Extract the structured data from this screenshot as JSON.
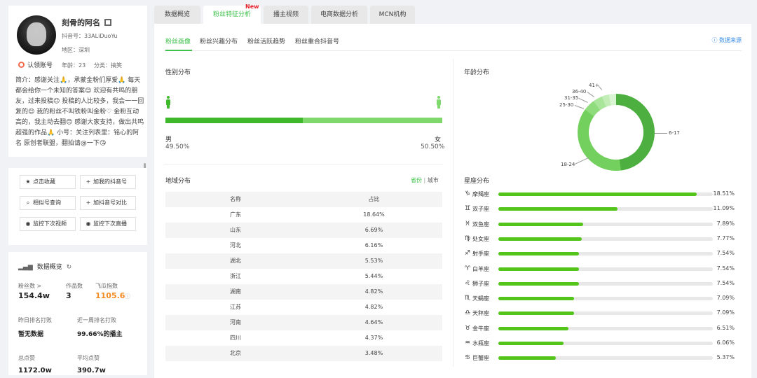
{
  "profile": {
    "name": "刻骨的阿名",
    "douyin_id": "抖音号：33ALiDuoYu",
    "region": "地区：深圳",
    "age": "年龄：23",
    "category": "分类：搞笑",
    "verify": "认领账号",
    "intro": "简介：感谢关注🙏，承蒙金粉们厚爱🙏 每天都会给你一个未知的答案😊 欢迎有共鸣的朋友，过来投稿😉 投稿的人比较多，我会一一回复的😊 我的粉丝不叫铁粉叫金粉♡ 金粉互动高的，我主动去翻😊 感谢大家支持，做出共鸣超强的作品🙏 小号：关注列表里：铭心的阿名 原创者联盟，翻拍请@一下😘"
  },
  "actions": [
    {
      "icon": "★",
      "label": "点击收藏"
    },
    {
      "icon": "+",
      "label": "加我的抖音号"
    },
    {
      "icon": "⌕",
      "label": "相似号查询"
    },
    {
      "icon": "+",
      "label": "加抖音号对比"
    },
    {
      "icon": "◉",
      "label": "监控下次视频"
    },
    {
      "icon": "◉",
      "label": "监控下次直播"
    }
  ],
  "stats": {
    "header": "数据概览",
    "fans_label": "粉丝数 >",
    "fans": "154.4w",
    "works_label": "作品数",
    "works": "3",
    "index_label": "飞瓜指数",
    "index": "1105.6",
    "rank_yesterday_label": "昨日排名打败",
    "rank_yesterday": "暂无数据",
    "rank_week_label": "近一周排名打败",
    "rank_week": "99.66%的播主",
    "likes_label": "总点赞",
    "likes": "1172.0w",
    "avg_likes_label": "平均点赞",
    "avg_likes": "390.7w"
  },
  "tabs": [
    "数据概览",
    "粉丝特征分析",
    "播主视频",
    "电商数据分析",
    "MCN机构"
  ],
  "new_badge": "New",
  "subtabs": [
    "粉丝画像",
    "粉丝兴趣分布",
    "粉丝活跃趋势",
    "粉丝重合抖音号"
  ],
  "source": "ⓘ 数据来源",
  "gender": {
    "title": "性别分布",
    "male_label": "男",
    "male_value": "49.50%",
    "male_ratio": 0.495,
    "female_label": "女",
    "female_value": "50.50%"
  },
  "age": {
    "title": "年龄分布",
    "labels": [
      "6-17",
      "18-24",
      "25-30",
      "31-35",
      "36-40",
      "41+"
    ],
    "values": [
      48,
      37,
      5,
      4,
      3,
      3
    ],
    "colors": [
      "#4caf3f",
      "#74d05e",
      "#8fdc7c",
      "#a9e59a",
      "#c2edb7",
      "#daf5d3"
    ]
  },
  "region": {
    "title": "地域分布",
    "toggle_province": "省份",
    "toggle_sep": "|",
    "toggle_city": "城市",
    "col_name": "名称",
    "col_ratio": "占比",
    "rows": [
      {
        "name": "广东",
        "ratio": "18.64%"
      },
      {
        "name": "山东",
        "ratio": "6.69%"
      },
      {
        "name": "河北",
        "ratio": "6.16%"
      },
      {
        "name": "湖北",
        "ratio": "5.53%"
      },
      {
        "name": "浙江",
        "ratio": "5.44%"
      },
      {
        "name": "湖南",
        "ratio": "4.82%"
      },
      {
        "name": "江苏",
        "ratio": "4.82%"
      },
      {
        "name": "河南",
        "ratio": "4.64%"
      },
      {
        "name": "四川",
        "ratio": "4.37%"
      },
      {
        "name": "北京",
        "ratio": "3.48%"
      }
    ]
  },
  "zodiac": {
    "title": "星座分布",
    "items": [
      {
        "icon": "♑",
        "name": "摩羯座",
        "value": "18.51%",
        "pct": 18.51
      },
      {
        "icon": "♊",
        "name": "双子座",
        "value": "11.09%",
        "pct": 11.09
      },
      {
        "icon": "♓",
        "name": "双鱼座",
        "value": "7.89%",
        "pct": 7.89
      },
      {
        "icon": "♍",
        "name": "处女座",
        "value": "7.77%",
        "pct": 7.77
      },
      {
        "icon": "♐",
        "name": "射手座",
        "value": "7.54%",
        "pct": 7.54
      },
      {
        "icon": "♈",
        "name": "白羊座",
        "value": "7.54%",
        "pct": 7.54
      },
      {
        "icon": "♌",
        "name": "狮子座",
        "value": "7.54%",
        "pct": 7.54
      },
      {
        "icon": "♏",
        "name": "天蝎座",
        "value": "7.09%",
        "pct": 7.09
      },
      {
        "icon": "♎",
        "name": "天秤座",
        "value": "7.09%",
        "pct": 7.09
      },
      {
        "icon": "♉",
        "name": "金牛座",
        "value": "6.51%",
        "pct": 6.51
      },
      {
        "icon": "♒",
        "name": "水瓶座",
        "value": "6.06%",
        "pct": 6.06
      },
      {
        "icon": "♋",
        "name": "巨蟹座",
        "value": "5.37%",
        "pct": 5.37
      }
    ],
    "max_pct": 20
  }
}
